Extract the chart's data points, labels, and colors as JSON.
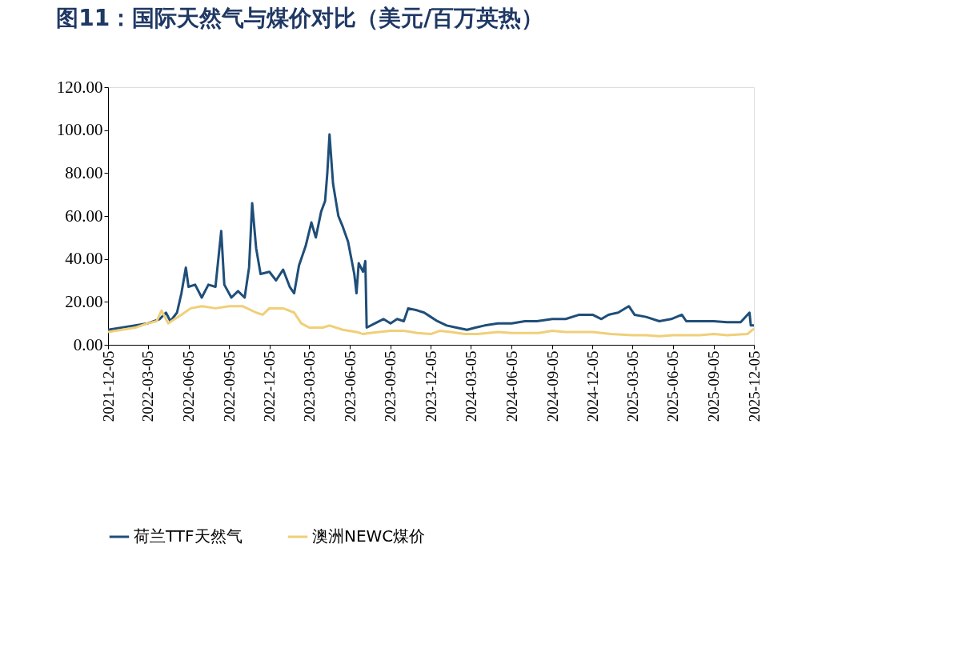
{
  "chart_data": {
    "type": "line",
    "title": "图11：国际天然气与煤价对比（美元/百万英热）",
    "xlim": [
      "2021-12-05",
      "2025-12-05"
    ],
    "xticks": [
      "2021-12-05",
      "2022-03-05",
      "2022-06-05",
      "2022-09-05",
      "2022-12-05",
      "2023-03-05",
      "2023-06-05",
      "2023-09-05",
      "2023-12-05",
      "2024-03-05",
      "2024-06-05",
      "2024-09-05",
      "2024-12-05",
      "2025-03-05",
      "2025-06-05",
      "2025-09-05",
      "2025-12-05"
    ],
    "ylim": [
      0,
      120
    ],
    "yticks": [
      {
        "value": 0,
        "label": "0.00"
      },
      {
        "value": 20,
        "label": "20.00"
      },
      {
        "value": 40,
        "label": "40.00"
      },
      {
        "value": 60,
        "label": "60.00"
      },
      {
        "value": 80,
        "label": "80.00"
      },
      {
        "value": 100,
        "label": "100.00"
      },
      {
        "value": 120,
        "label": "120.00"
      }
    ],
    "grid": false,
    "legend": "bottom",
    "marker": "none",
    "line_style": "solid",
    "series": [
      {
        "name": "荷兰TTF天然气",
        "color": "#1f4e79",
        "x": [
          "2021-12-05",
          "2022-01-05",
          "2022-02-05",
          "2022-03-05",
          "2022-04-01",
          "2022-04-15",
          "2022-04-25",
          "2022-05-10",
          "2022-05-20",
          "2022-05-30",
          "2022-06-05",
          "2022-06-20",
          "2022-07-05",
          "2022-07-20",
          "2022-08-05",
          "2022-08-18",
          "2022-08-25",
          "2022-09-10",
          "2022-09-25",
          "2022-10-10",
          "2022-10-20",
          "2022-10-27",
          "2022-11-05",
          "2022-11-15",
          "2022-12-05",
          "2022-12-20",
          "2023-01-05",
          "2023-01-20",
          "2023-01-30",
          "2023-02-10",
          "2023-02-25",
          "2023-03-10",
          "2023-03-20",
          "2023-04-01",
          "2023-04-10",
          "2023-04-15",
          "2023-04-20",
          "2023-04-28",
          "2023-05-10",
          "2023-05-20",
          "2023-06-01",
          "2023-06-15",
          "2023-06-20",
          "2023-06-25",
          "2023-07-05",
          "2023-07-10",
          "2023-07-13",
          "2023-08-01",
          "2023-08-20",
          "2023-09-05",
          "2023-09-20",
          "2023-10-05",
          "2023-10-15",
          "2023-11-05",
          "2023-11-20",
          "2023-12-05",
          "2023-12-20",
          "2024-01-10",
          "2024-02-01",
          "2024-02-25",
          "2024-03-15",
          "2024-04-05",
          "2024-05-05",
          "2024-06-05",
          "2024-07-05",
          "2024-08-01",
          "2024-09-05",
          "2024-10-05",
          "2024-11-05",
          "2024-12-05",
          "2024-12-25",
          "2025-01-10",
          "2025-02-01",
          "2025-02-25",
          "2025-03-10",
          "2025-04-05",
          "2025-05-05",
          "2025-06-01",
          "2025-06-25",
          "2025-07-05",
          "2025-08-05",
          "2025-09-05",
          "2025-10-05",
          "2025-11-05",
          "2025-11-25",
          "2025-11-28",
          "2025-12-05"
        ],
        "values": [
          7,
          8,
          9,
          10,
          12,
          15,
          11,
          15,
          24,
          36,
          27,
          28,
          22,
          28,
          27,
          53,
          28,
          22,
          25,
          22,
          36,
          66,
          45,
          33,
          34,
          30,
          35,
          27,
          24,
          37,
          46,
          57,
          50,
          62,
          67,
          80,
          98,
          75,
          60,
          55,
          48,
          33,
          24,
          38,
          34,
          39,
          8,
          10,
          12,
          10,
          12,
          11,
          17,
          16,
          15,
          13,
          11,
          9,
          8,
          7,
          8,
          9,
          10,
          10,
          11,
          11,
          12,
          12,
          14,
          14,
          12,
          14,
          15,
          18,
          14,
          13,
          11,
          12,
          14,
          11,
          11,
          11,
          10.5,
          10.5,
          15,
          9,
          9
        ]
      },
      {
        "name": "澳洲NEWC煤价",
        "color": "#f0cf78",
        "x": [
          "2021-12-05",
          "2022-01-05",
          "2022-02-05",
          "2022-03-05",
          "2022-03-25",
          "2022-04-05",
          "2022-04-20",
          "2022-05-05",
          "2022-05-20",
          "2022-06-10",
          "2022-07-05",
          "2022-08-05",
          "2022-09-05",
          "2022-10-05",
          "2022-11-05",
          "2022-11-20",
          "2022-12-05",
          "2023-01-05",
          "2023-01-30",
          "2023-02-15",
          "2023-03-05",
          "2023-04-05",
          "2023-04-20",
          "2023-05-20",
          "2023-06-20",
          "2023-07-05",
          "2023-07-20",
          "2023-09-05",
          "2023-10-05",
          "2023-11-05",
          "2023-12-05",
          "2023-12-25",
          "2024-01-20",
          "2024-02-20",
          "2024-03-20",
          "2024-05-05",
          "2024-06-05",
          "2024-08-05",
          "2024-09-05",
          "2024-10-05",
          "2024-12-05",
          "2025-01-15",
          "2025-03-05",
          "2025-04-05",
          "2025-05-05",
          "2025-06-05",
          "2025-08-05",
          "2025-09-05",
          "2025-10-05",
          "2025-11-20",
          "2025-12-05"
        ],
        "values": [
          6,
          7,
          8,
          10,
          11,
          16,
          10,
          12,
          14,
          17,
          18,
          17,
          18,
          18,
          15,
          14,
          17,
          17,
          15,
          10,
          8,
          8,
          9,
          7,
          6,
          5,
          5.5,
          6.5,
          6.5,
          5.5,
          5,
          6.5,
          6,
          5,
          5,
          6,
          5.5,
          5.5,
          6.5,
          6,
          6,
          5,
          4.5,
          4.5,
          4,
          4.5,
          4.5,
          5,
          4.5,
          5,
          7.5
        ]
      }
    ]
  }
}
